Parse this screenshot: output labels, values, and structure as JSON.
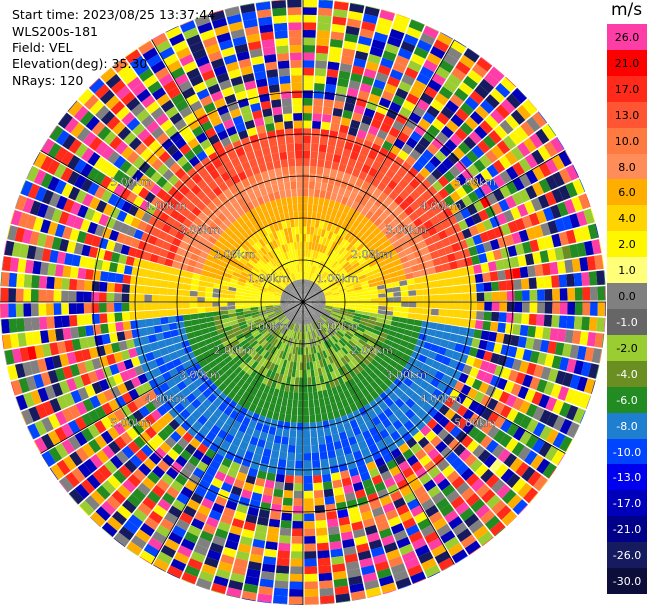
{
  "header": {
    "start_time": "Start time: 2023/08/25 13:37:44",
    "instrument": "WLS200s-181",
    "field": "Field: VEL",
    "elevation": "Elevation(deg): 35.30",
    "nrays": "NRays: 120"
  },
  "colorbar": {
    "unit": "m/s",
    "labels": [
      "26.0",
      "21.0",
      "17.0",
      "13.0",
      "10.0",
      "8.0",
      "6.0",
      "4.0",
      "2.0",
      "1.0",
      "0.0",
      "-1.0",
      "-2.0",
      "-4.0",
      "-6.0",
      "-8.0",
      "-10.0",
      "-13.0",
      "-17.0",
      "-21.0",
      "-26.0",
      "-30.0"
    ],
    "colors": [
      "#ff3da6",
      "#ff0000",
      "#ff2a1a",
      "#ff5533",
      "#ff7a40",
      "#ff8d5a",
      "#ffae00",
      "#ffd400",
      "#fff700",
      "#ffff7a",
      "#808080",
      "#666666",
      "#9acd32",
      "#6b8e23",
      "#228b22",
      "#1e7fd0",
      "#0044ff",
      "#0000ee",
      "#0000bb",
      "#000088",
      "#161a5e",
      "#0d0d3a"
    ]
  },
  "chart_data": {
    "type": "heatmap",
    "title": "",
    "field": "VEL",
    "units": "m/s",
    "color_scale_range": [
      -30.0,
      26.0
    ],
    "n_rays": 120,
    "range_rings_km": [
      1.0,
      2.0,
      3.0,
      4.0,
      5.0
    ],
    "range_ring_labels": [
      "1.00km",
      "2.00km",
      "3.00km",
      "4.00km",
      "5.00km"
    ],
    "sectors": [
      {
        "direction": "north",
        "range_km": [
          1.0,
          3.0
        ],
        "velocity_m_s": [
          8.0,
          13.0
        ]
      },
      {
        "direction": "north",
        "range_km": [
          3.0,
          3.8
        ],
        "velocity_m_s": [
          13.0,
          17.0
        ]
      },
      {
        "direction": "east-west band",
        "range_km": [
          0.5,
          2.5
        ],
        "velocity_m_s": [
          1.0,
          6.0
        ]
      },
      {
        "direction": "center",
        "range_km": [
          0.0,
          0.8
        ],
        "velocity_m_s": [
          -1.0,
          1.0
        ]
      },
      {
        "direction": "south",
        "range_km": [
          0.5,
          2.0
        ],
        "velocity_m_s": [
          -6.0,
          -2.0
        ]
      },
      {
        "direction": "south",
        "range_km": [
          2.0,
          3.8
        ],
        "velocity_m_s": [
          -10.0,
          -8.0
        ]
      },
      {
        "direction": "outer ring",
        "range_km": [
          4.0,
          5.5
        ],
        "velocity_m_s": "noise"
      }
    ],
    "grid": true,
    "legend": "colorbar right"
  }
}
